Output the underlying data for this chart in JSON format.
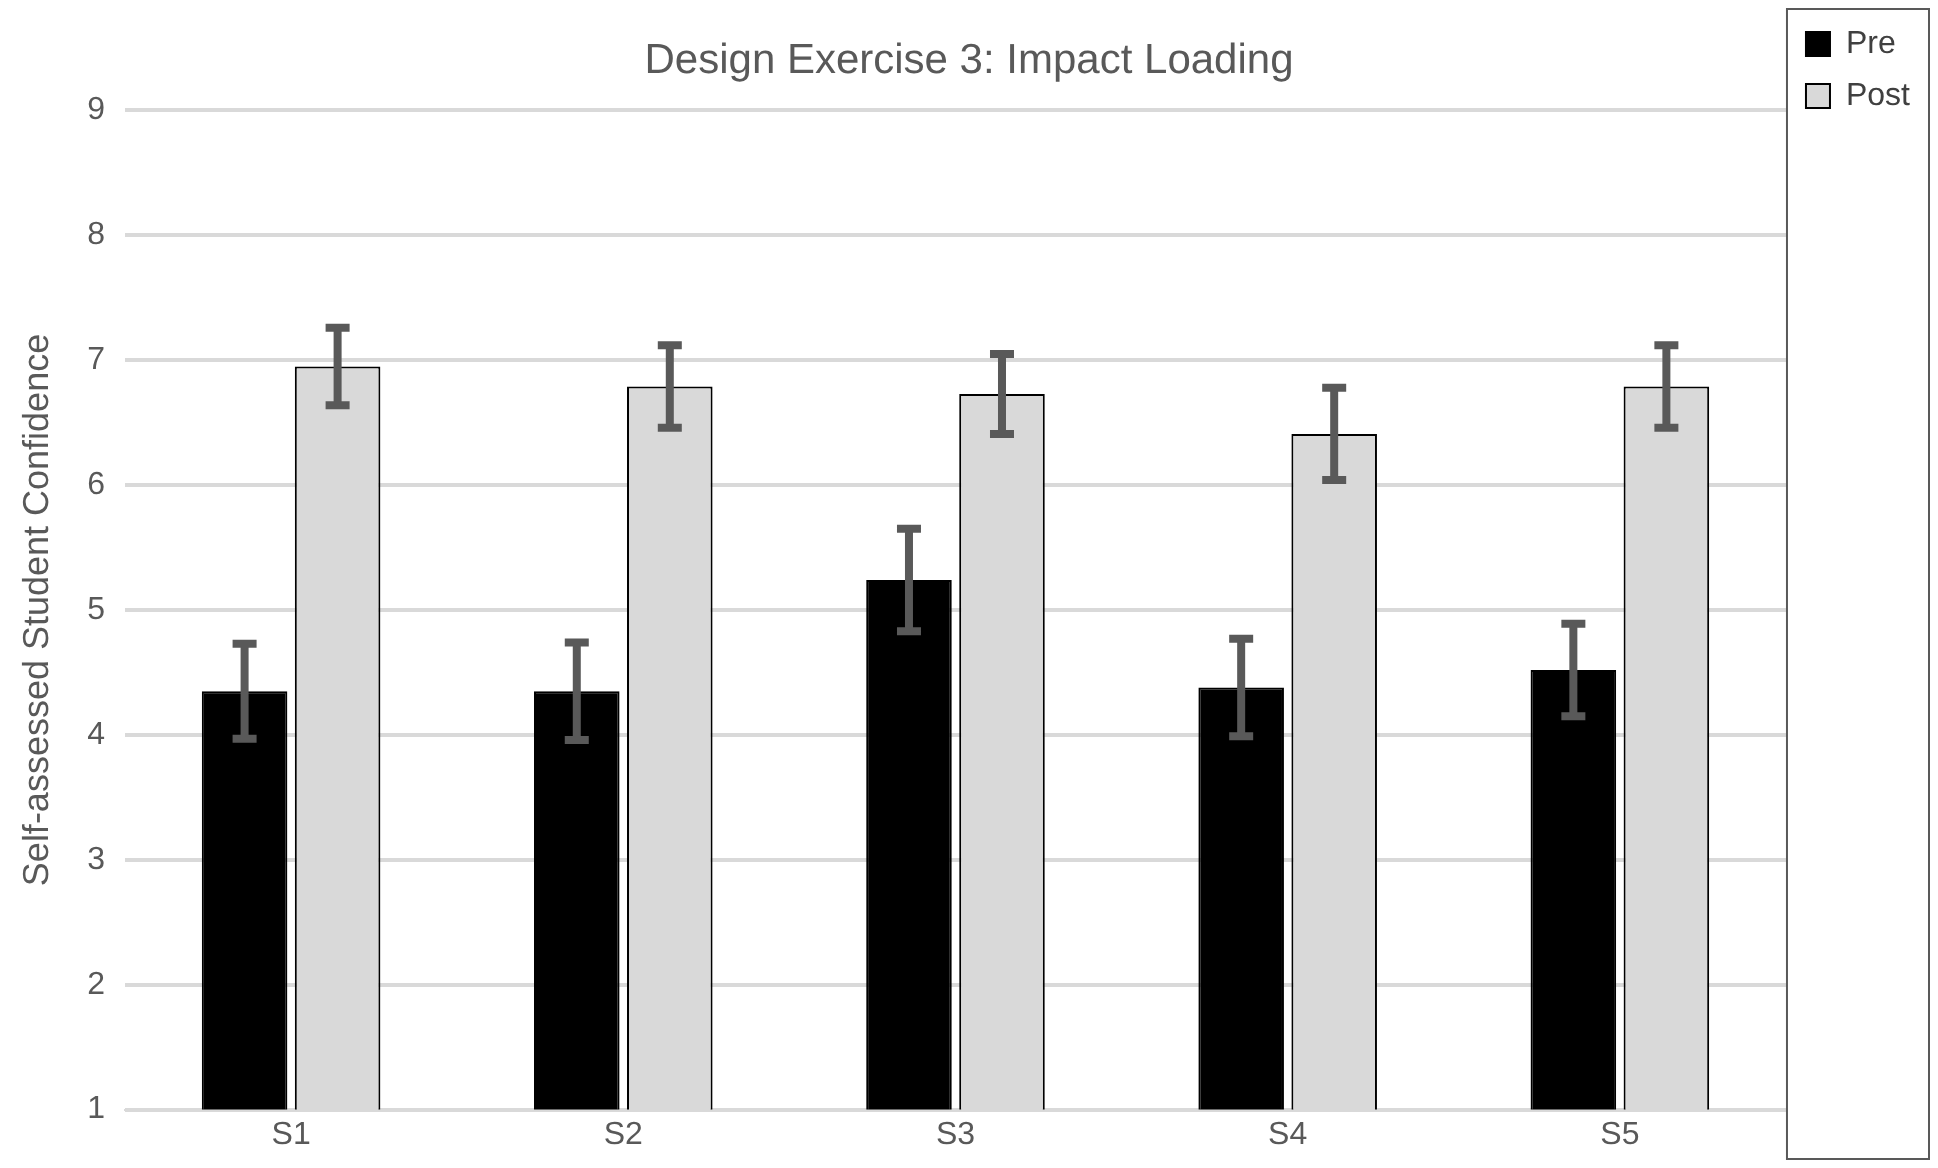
{
  "chart_data": {
    "type": "bar",
    "title": "Design Exercise 3: Impact Loading",
    "ylabel": "Self-assessed Student Confidence",
    "categories": [
      "S1",
      "S2",
      "S3",
      "S4",
      "S5"
    ],
    "series": [
      {
        "name": "Pre",
        "color": "#000000",
        "values": [
          4.35,
          4.35,
          5.24,
          4.38,
          4.52
        ],
        "errors": [
          0.38,
          0.39,
          0.41,
          0.39,
          0.37
        ]
      },
      {
        "name": "Post",
        "color": "#d9d9d9",
        "values": [
          6.95,
          6.79,
          6.73,
          6.41,
          6.79
        ],
        "errors": [
          0.31,
          0.33,
          0.32,
          0.37,
          0.33
        ]
      }
    ],
    "ylim": [
      1,
      9
    ],
    "yticks": [
      1,
      2,
      3,
      4,
      5,
      6,
      7,
      8,
      9
    ],
    "grid": "y",
    "legend": "top right"
  }
}
